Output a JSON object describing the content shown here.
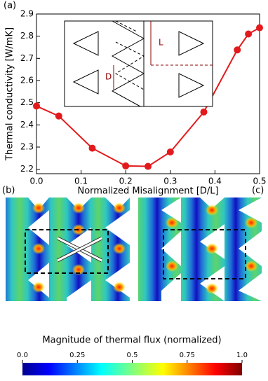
{
  "chart_data": {
    "type": "line",
    "panel_labels": [
      "(a)",
      "(b)",
      "(c)"
    ],
    "ylabel": "Thermal conductivity [W/mK]",
    "xlabel": "Normalized Misalignment [D/L]",
    "x": [
      0,
      0.05,
      0.125,
      0.2,
      0.25,
      0.3,
      0.375,
      0.45,
      0.475,
      0.5
    ],
    "values": [
      2.485,
      2.44,
      2.295,
      2.215,
      2.213,
      2.278,
      2.458,
      2.738,
      2.81,
      2.838
    ],
    "color": "#e31a1c",
    "xlim": [
      0,
      0.5
    ],
    "ylim": [
      2.18,
      2.9
    ],
    "xticks": [
      {
        "value": 0,
        "label": "0.0"
      },
      0.1,
      0.2,
      0.3,
      0.4,
      0.5
    ],
    "yticks": [
      2.2,
      2.3,
      2.4,
      2.5,
      2.6,
      2.7,
      2.8,
      2.9
    ],
    "inset_labels": [
      "L",
      "D"
    ],
    "colorbar": {
      "label": "Magnitude of thermal flux (normalized)",
      "lim": [
        0,
        1
      ],
      "ticks": [
        {
          "value": 0,
          "label": "0.0"
        },
        0.25,
        0.5,
        0.75,
        {
          "value": 1,
          "label": "1.0"
        }
      ]
    }
  }
}
